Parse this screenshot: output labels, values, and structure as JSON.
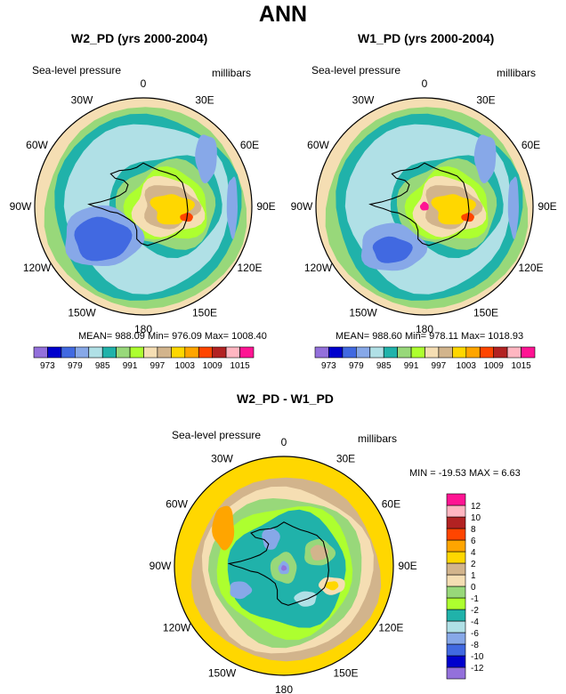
{
  "main_title": "ANN",
  "chart_data": [
    {
      "type": "polar-contour-map",
      "projection": "south-polar-stereographic",
      "title": "W2_PD (yrs 2000-2004)",
      "left_label": "Sea-level pressure",
      "right_label": "millibars",
      "lon_labels": [
        "0",
        "30E",
        "60E",
        "90E",
        "120E",
        "150E",
        "180",
        "150W",
        "120W",
        "90W",
        "60W",
        "30W"
      ],
      "stats": {
        "mean": 988.09,
        "min": 976.09,
        "max": 1008.4
      },
      "stats_text": "MEAN= 988.09  Min= 976.09  Max= 1008.40",
      "colorbar": {
        "levels": [
          973,
          976,
          979,
          982,
          985,
          988,
          991,
          994,
          997,
          1000,
          1003,
          1006,
          1009,
          1012,
          1015
        ],
        "tick_labels": [
          "973",
          "979",
          "985",
          "991",
          "997",
          "1003",
          "1009",
          "1015"
        ],
        "colors": [
          "#9370DB",
          "#0000CD",
          "#4169E1",
          "#87A8E8",
          "#B0E0E6",
          "#20B2AA",
          "#98D87A",
          "#ADFF2F",
          "#F5DEB3",
          "#D2B48C",
          "#FFD700",
          "#FFA500",
          "#FF4500",
          "#B22222",
          "#FFB6C1",
          "#FF1493"
        ]
      }
    },
    {
      "type": "polar-contour-map",
      "projection": "south-polar-stereographic",
      "title": "W1_PD (yrs 2000-2004)",
      "left_label": "Sea-level pressure",
      "right_label": "millibars",
      "lon_labels": [
        "0",
        "30E",
        "60E",
        "90E",
        "120E",
        "150E",
        "180",
        "150W",
        "120W",
        "90W",
        "60W",
        "30W"
      ],
      "stats": {
        "mean": 988.6,
        "min": 978.11,
        "max": 1018.93
      },
      "stats_text": "MEAN= 988.60  Min= 978.11  Max= 1018.93",
      "colorbar": {
        "levels": [
          973,
          976,
          979,
          982,
          985,
          988,
          991,
          994,
          997,
          1000,
          1003,
          1006,
          1009,
          1012,
          1015
        ],
        "tick_labels": [
          "973",
          "979",
          "985",
          "991",
          "997",
          "1003",
          "1009",
          "1015"
        ],
        "colors": [
          "#9370DB",
          "#0000CD",
          "#4169E1",
          "#87A8E8",
          "#B0E0E6",
          "#20B2AA",
          "#98D87A",
          "#ADFF2F",
          "#F5DEB3",
          "#D2B48C",
          "#FFD700",
          "#FFA500",
          "#FF4500",
          "#B22222",
          "#FFB6C1",
          "#FF1493"
        ]
      }
    },
    {
      "type": "polar-contour-map",
      "projection": "south-polar-stereographic",
      "title": "W2_PD - W1_PD",
      "left_label": "Sea-level pressure",
      "right_label": "millibars",
      "lon_labels": [
        "0",
        "30E",
        "60E",
        "90E",
        "120E",
        "150E",
        "180",
        "150W",
        "120W",
        "90W",
        "60W",
        "30W"
      ],
      "stats": {
        "min": -19.53,
        "max": 6.63
      },
      "stats_text": "MIN = -19.53 MAX =   6.63",
      "colorbar": {
        "orientation": "vertical",
        "levels": [
          -12,
          -10,
          -8,
          -6,
          -4,
          -2,
          -1,
          0,
          1,
          2,
          4,
          6,
          8,
          10,
          12
        ],
        "tick_labels": [
          "-12",
          "-10",
          "-8",
          "-6",
          "-4",
          "-2",
          "-1",
          "0",
          "1",
          "2",
          "4",
          "6",
          "8",
          "10",
          "12"
        ],
        "colors": [
          "#9370DB",
          "#0000CD",
          "#4169E1",
          "#87A8E8",
          "#B0E0E6",
          "#20B2AA",
          "#ADFF2F",
          "#98D87A",
          "#F5DEB3",
          "#D2B48C",
          "#FFD700",
          "#FFA500",
          "#FF4500",
          "#B22222",
          "#FFB6C1",
          "#FF1493"
        ]
      }
    }
  ]
}
